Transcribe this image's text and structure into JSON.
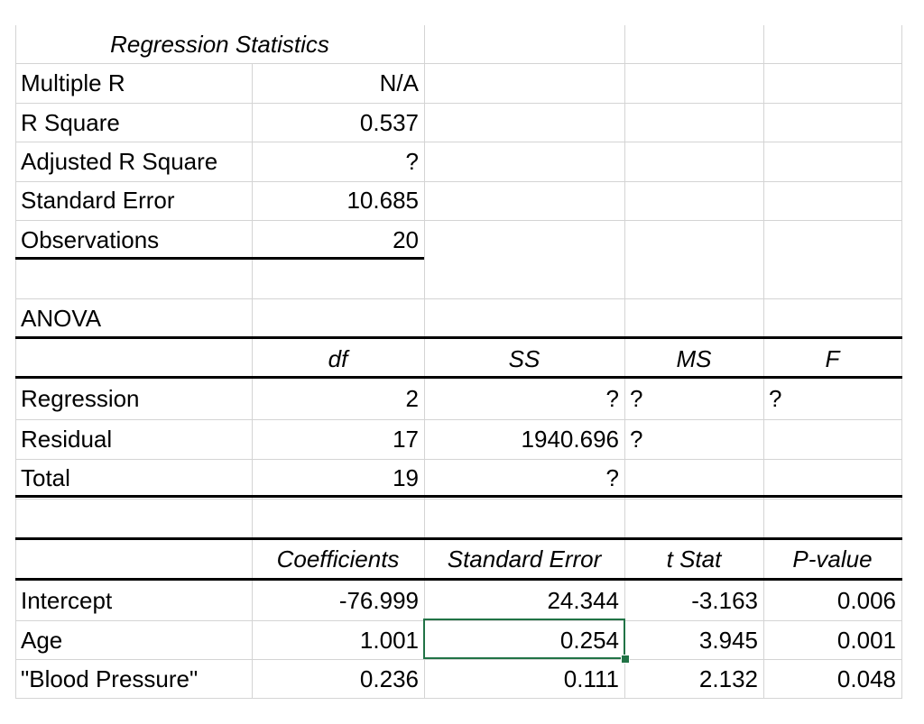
{
  "regression_statistics": {
    "header": "Regression Statistics",
    "rows": [
      {
        "label": "Multiple R",
        "value": "N/A"
      },
      {
        "label": "R Square",
        "value": "0.537"
      },
      {
        "label": "Adjusted R Square",
        "value": "?"
      },
      {
        "label": "Standard Error",
        "value": "10.685"
      },
      {
        "label": "Observations",
        "value": "20"
      }
    ]
  },
  "anova": {
    "title": "ANOVA",
    "headers": [
      "df",
      "SS",
      "MS",
      "F"
    ],
    "rows": [
      {
        "label": "Regression",
        "df": "2",
        "ss": "?",
        "ms": "?",
        "f": "?"
      },
      {
        "label": "Residual",
        "df": "17",
        "ss": "1940.696",
        "ms": "?",
        "f": ""
      },
      {
        "label": "Total",
        "df": "19",
        "ss": "?",
        "ms": "",
        "f": ""
      }
    ]
  },
  "coefficients": {
    "headers": [
      "Coefficients",
      "Standard Error",
      "t Stat",
      "P-value"
    ],
    "rows": [
      {
        "label": "Intercept",
        "coef": "-76.999",
        "se": "24.344",
        "t": "-3.163",
        "p": "0.006"
      },
      {
        "label": "Age",
        "coef": "1.001",
        "se": "0.254",
        "t": "3.945",
        "p": "0.001"
      },
      {
        "label": "\"Blood Pressure\"",
        "coef": "0.236",
        "se": "0.111",
        "t": "2.132",
        "p": "0.048"
      }
    ]
  },
  "colors": {
    "gridline": "#d4d4d4",
    "selection": "#217346"
  }
}
